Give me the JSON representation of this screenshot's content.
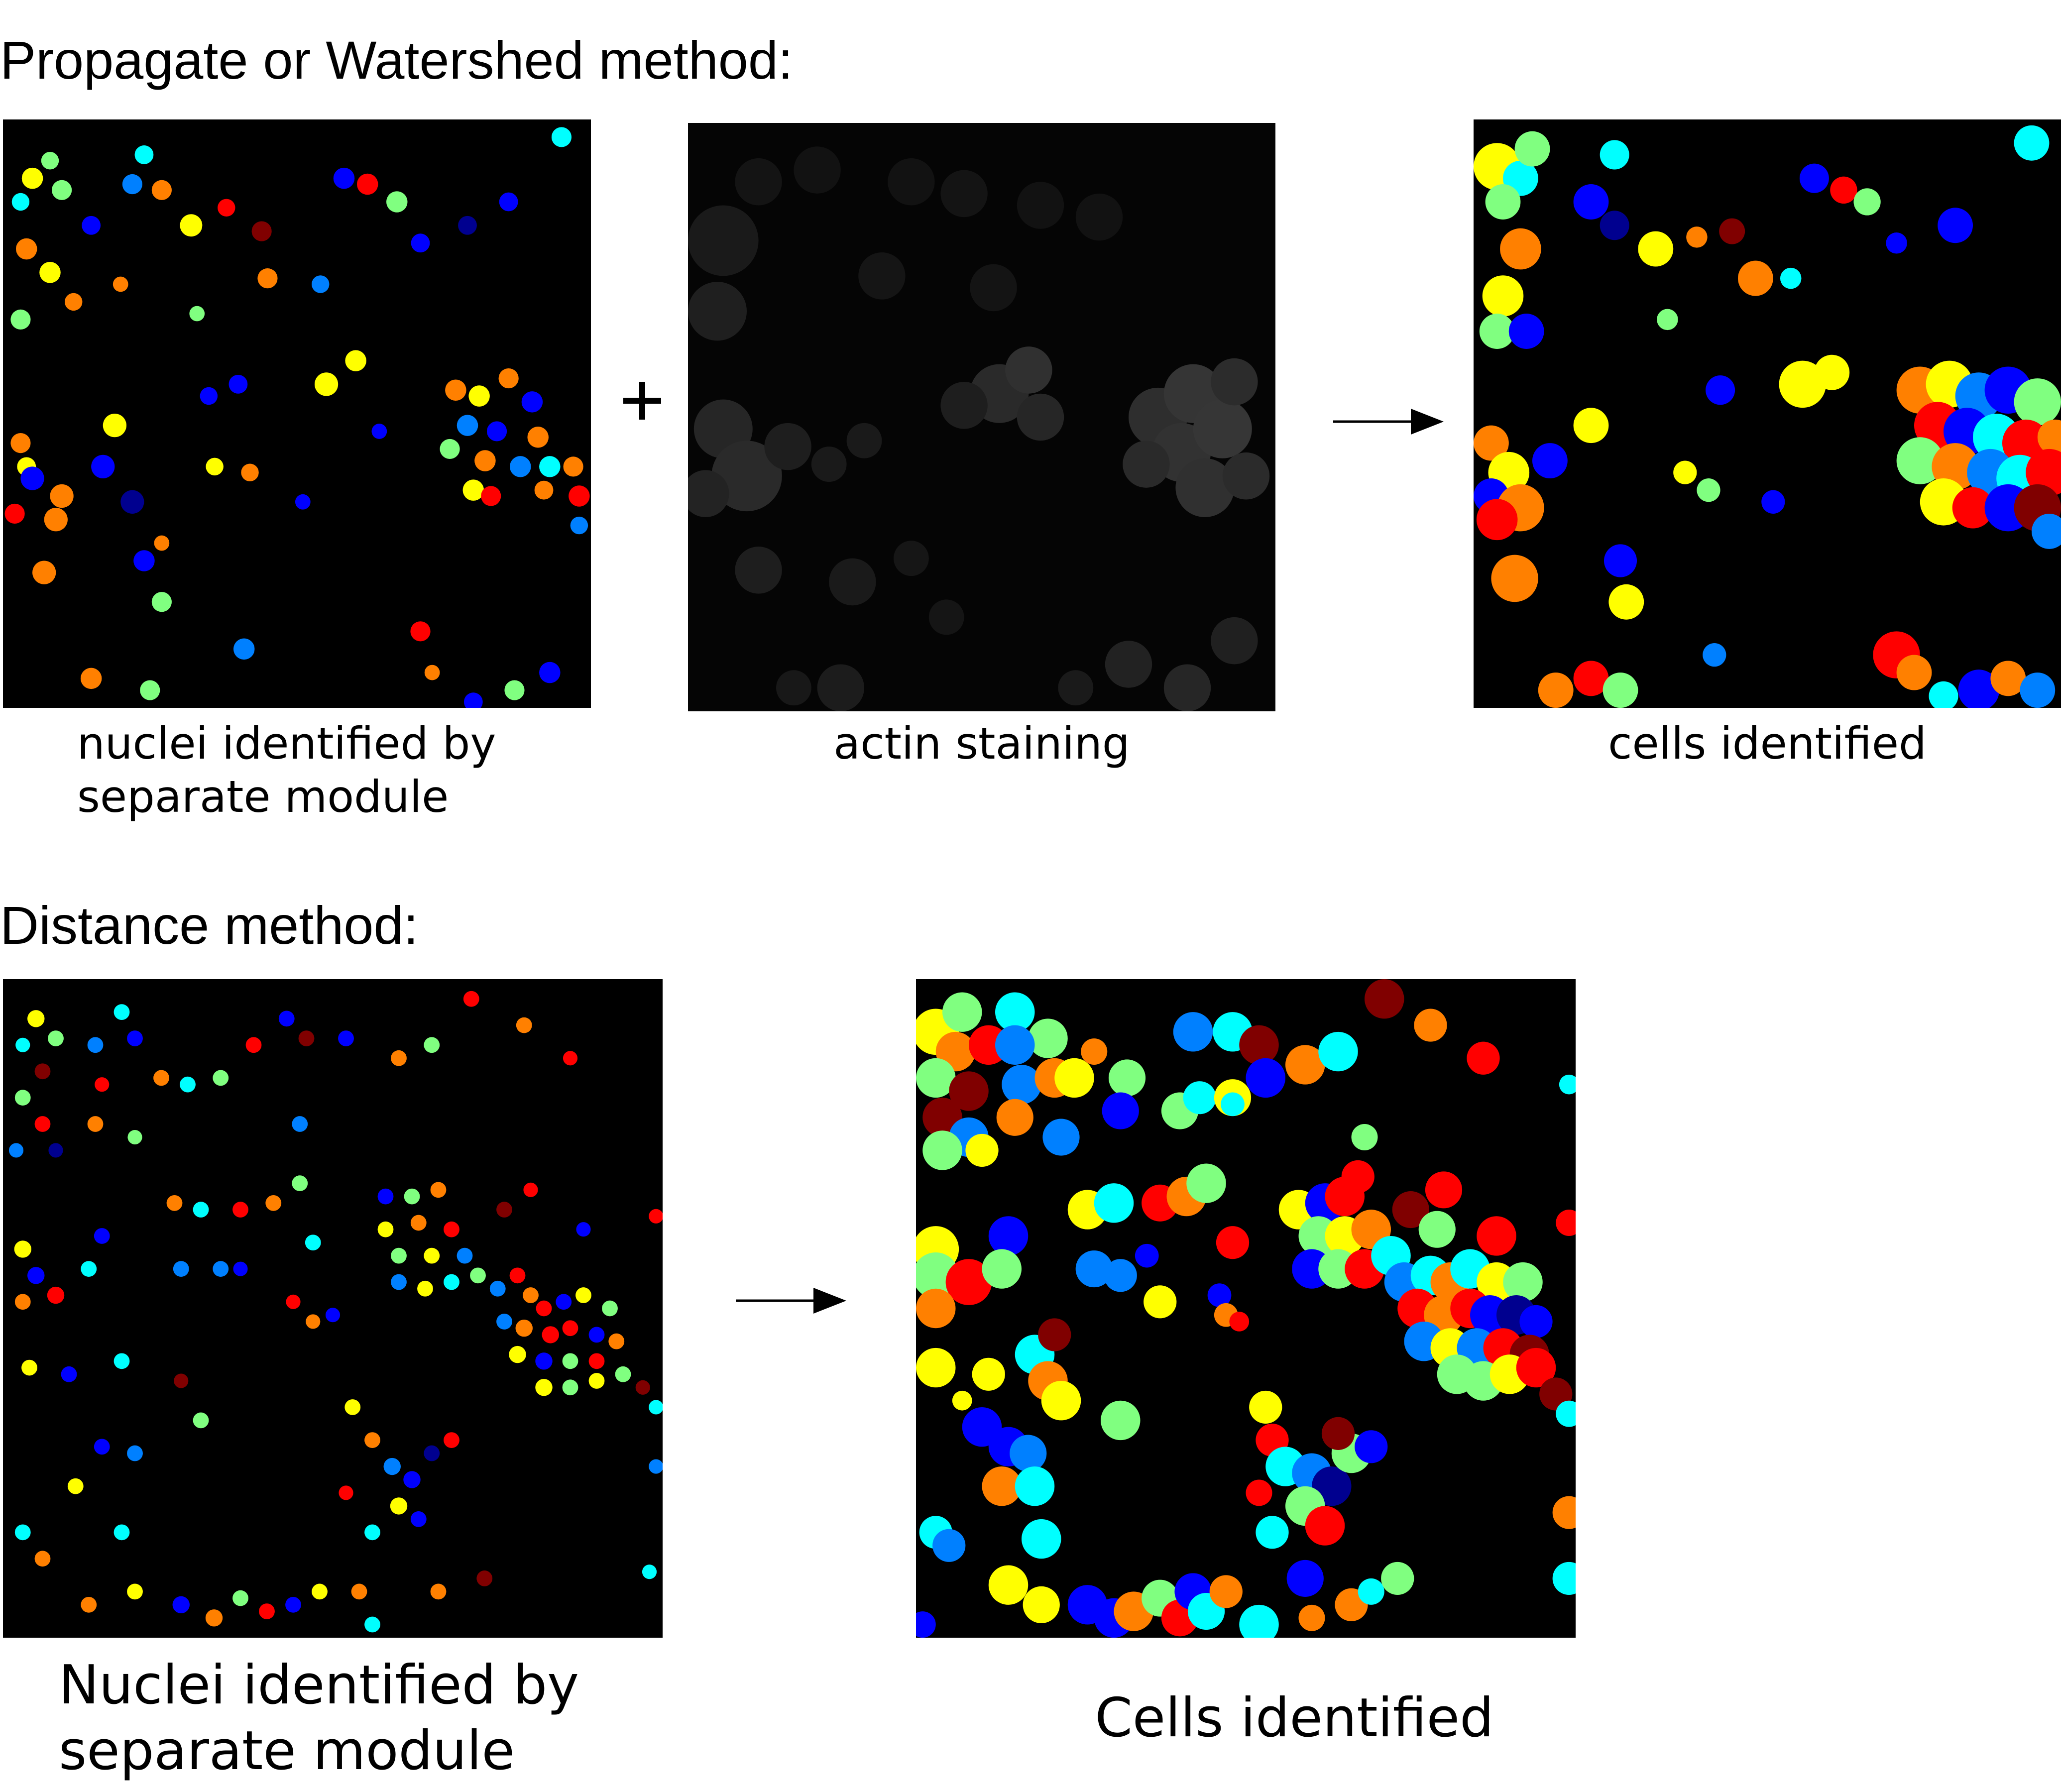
{
  "sections": {
    "top_heading": "Propagate or Watershed method:",
    "bottom_heading": "Distance method:"
  },
  "top_row": {
    "nuclei_caption_line1": "nuclei identified by",
    "nuclei_caption_line2": "separate module",
    "actin_caption": "actin staining",
    "cells_caption": "cells identified",
    "operator_symbol": "plus-icon",
    "flow_symbol": "arrow-right-icon"
  },
  "bottom_row": {
    "nuclei_caption_line1": "Nuclei identified by",
    "nuclei_caption_line2": "separate module",
    "cells_caption": "Cells identified",
    "flow_symbol": "arrow-right-icon"
  },
  "colors": {
    "panel_background": "#000000",
    "label_palette": [
      "#00008f",
      "#0000ff",
      "#0080ff",
      "#00ffff",
      "#80ff80",
      "#ffff00",
      "#ff8000",
      "#ff0000",
      "#800000"
    ]
  }
}
